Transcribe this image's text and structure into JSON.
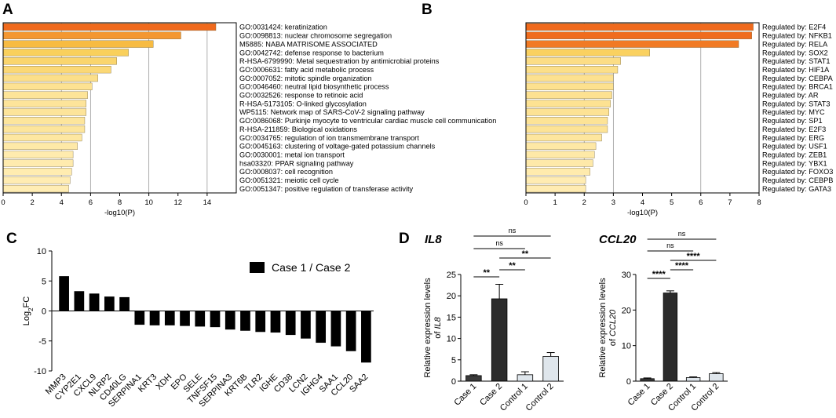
{
  "panels": {
    "a": "A",
    "b": "B",
    "c": "C",
    "d": "D"
  },
  "chart_data": [
    {
      "panel": "A",
      "type": "bar",
      "orientation": "horizontal",
      "xlabel": "-log10(P)",
      "xlim": [
        0,
        16
      ],
      "xticks": [
        0,
        2,
        4,
        6,
        8,
        10,
        12,
        14
      ],
      "gridlines": [
        4,
        6,
        10,
        14
      ],
      "categories": [
        "GO:0031424: keratinization",
        "GO:0098813: nuclear chromosome segregation",
        "M5885: NABA MATRISOME ASSOCIATED",
        "GO:0042742: defense response to bacterium",
        "R-HSA-6799990: Metal sequestration by antimicrobial proteins",
        "GO:0006631: fatty acid metabolic process",
        "GO:0007052: mitotic spindle organization",
        "GO:0046460: neutral lipid biosynthetic process",
        "GO:0032526: response to retinoic acid",
        "R-HSA-5173105: O-linked glycosylation",
        "WP5115: Network map of SARS-CoV-2 signaling pathway",
        "GO:0086068: Purkinje myocyte to ventricular cardiac muscle cell communication",
        "R-HSA-211859: Biological oxidations",
        "GO:0034765: regulation of ion transmembrane transport",
        "GO:0045163: clustering of voltage-gated potassium channels",
        "GO:0030001: metal ion transport",
        "hsa03320: PPAR signaling pathway",
        "GO:0008037: cell recognition",
        "GO:0051321: meiotic cell cycle",
        "GO:0051347: positive regulation of transferase activity"
      ],
      "values": [
        14.6,
        12.2,
        10.3,
        8.6,
        7.8,
        7.4,
        6.5,
        6.1,
        5.8,
        5.7,
        5.7,
        5.6,
        5.6,
        5.4,
        5.1,
        4.8,
        4.8,
        4.7,
        4.6,
        4.5
      ]
    },
    {
      "panel": "B",
      "type": "bar",
      "orientation": "horizontal",
      "xlabel": "-log10(P)",
      "xlim": [
        0,
        8
      ],
      "xticks": [
        0,
        1,
        2,
        3,
        4,
        5,
        6,
        7,
        8
      ],
      "gridlines": [
        2,
        3,
        6
      ],
      "categories": [
        "Regulated by: E2F4",
        "Regulated by: NFKB1",
        "Regulated by: RELA",
        "Regulated by: SOX2",
        "Regulated by: STAT1",
        "Regulated by: HIF1A",
        "Regulated by: CEBPA",
        "Regulated by: BRCA1",
        "Regulated by: AR",
        "Regulated by: STAT3",
        "Regulated by: MYC",
        "Regulated by: SP1",
        "Regulated by: E2F3",
        "Regulated by: ERG",
        "Regulated by: USF1",
        "Regulated by: ZEB1",
        "Regulated by: YBX1",
        "Regulated by: FOXO3",
        "Regulated by: CEBPB",
        "Regulated by: GATA3"
      ],
      "values": [
        7.8,
        7.75,
        7.3,
        4.25,
        3.25,
        3.15,
        3.0,
        3.0,
        2.95,
        2.9,
        2.85,
        2.8,
        2.8,
        2.6,
        2.4,
        2.35,
        2.3,
        2.2,
        2.05,
        2.05
      ]
    },
    {
      "panel": "C",
      "type": "bar",
      "ylabel": "Log2FC",
      "ylim": [
        -10,
        10
      ],
      "yticks": [
        -10,
        -5,
        0,
        5,
        10
      ],
      "legend": "Case 1 / Case 2",
      "legend_position": "top-right",
      "categories": [
        "MMP3",
        "CYP2E1",
        "CXCL9",
        "NLRP2",
        "CD40LG",
        "SERPINA1",
        "KRT3",
        "XDH",
        "EPO",
        "SELE",
        "TNFSF15",
        "SERPINA3",
        "KRT6B",
        "TLR2",
        "IGHE",
        "CD38",
        "LCN2",
        "IGHG4",
        "SAA1",
        "CCL20",
        "SAA2"
      ],
      "values": [
        5.8,
        3.3,
        2.9,
        2.4,
        2.3,
        -2.3,
        -2.4,
        -2.4,
        -2.5,
        -2.6,
        -2.7,
        -3.1,
        -3.3,
        -3.5,
        -3.6,
        -4.0,
        -4.6,
        -5.3,
        -5.9,
        -6.7,
        -8.6
      ]
    },
    {
      "panel": "D",
      "type": "bar",
      "title": "IL8",
      "ylabel_prefix": "Relative expression levels",
      "ylabel_of": "of",
      "ylabel_gene": "IL8",
      "ylim": [
        0,
        25
      ],
      "yticks": [
        0,
        5,
        10,
        15,
        20,
        25
      ],
      "categories": [
        "Case 1",
        "Case 2",
        "Control 1",
        "Control 2"
      ],
      "values": [
        1.3,
        19.3,
        1.5,
        5.8
      ],
      "errors": [
        0.2,
        3.4,
        0.7,
        0.9
      ],
      "colors": [
        "#3a3a3a",
        "#2b2b2b",
        "#dfe6ec",
        "#dfe6ec"
      ],
      "significance": [
        {
          "from": "Case 1",
          "to": "Case 2",
          "label": "**"
        },
        {
          "from": "Case 2",
          "to": "Control 1",
          "label": "**"
        },
        {
          "from": "Case 2",
          "to": "Control 2",
          "label": "**"
        },
        {
          "from": "Case 1",
          "to": "Control 1",
          "label": "ns"
        },
        {
          "from": "Case 1",
          "to": "Control 2",
          "label": "ns"
        }
      ]
    },
    {
      "panel": "D",
      "type": "bar",
      "title": "CCL20",
      "ylabel_prefix": "Relative expression levels",
      "ylabel_of": "of",
      "ylabel_gene": "CCL20",
      "ylim": [
        0,
        30
      ],
      "yticks": [
        0,
        10,
        20,
        30
      ],
      "categories": [
        "Case 1",
        "Case 2",
        "Control 1",
        "Control 2"
      ],
      "values": [
        0.7,
        24.8,
        1.0,
        2.1
      ],
      "errors": [
        0.2,
        0.6,
        0.2,
        0.3
      ],
      "colors": [
        "#3a3a3a",
        "#2b2b2b",
        "#dfe6ec",
        "#dfe6ec"
      ],
      "significance": [
        {
          "from": "Case 1",
          "to": "Case 2",
          "label": "****"
        },
        {
          "from": "Case 2",
          "to": "Control 1",
          "label": "****"
        },
        {
          "from": "Case 2",
          "to": "Control 2",
          "label": "****"
        },
        {
          "from": "Case 1",
          "to": "Control 1",
          "label": "ns"
        },
        {
          "from": "Case 1",
          "to": "Control 2",
          "label": "ns"
        }
      ]
    }
  ]
}
